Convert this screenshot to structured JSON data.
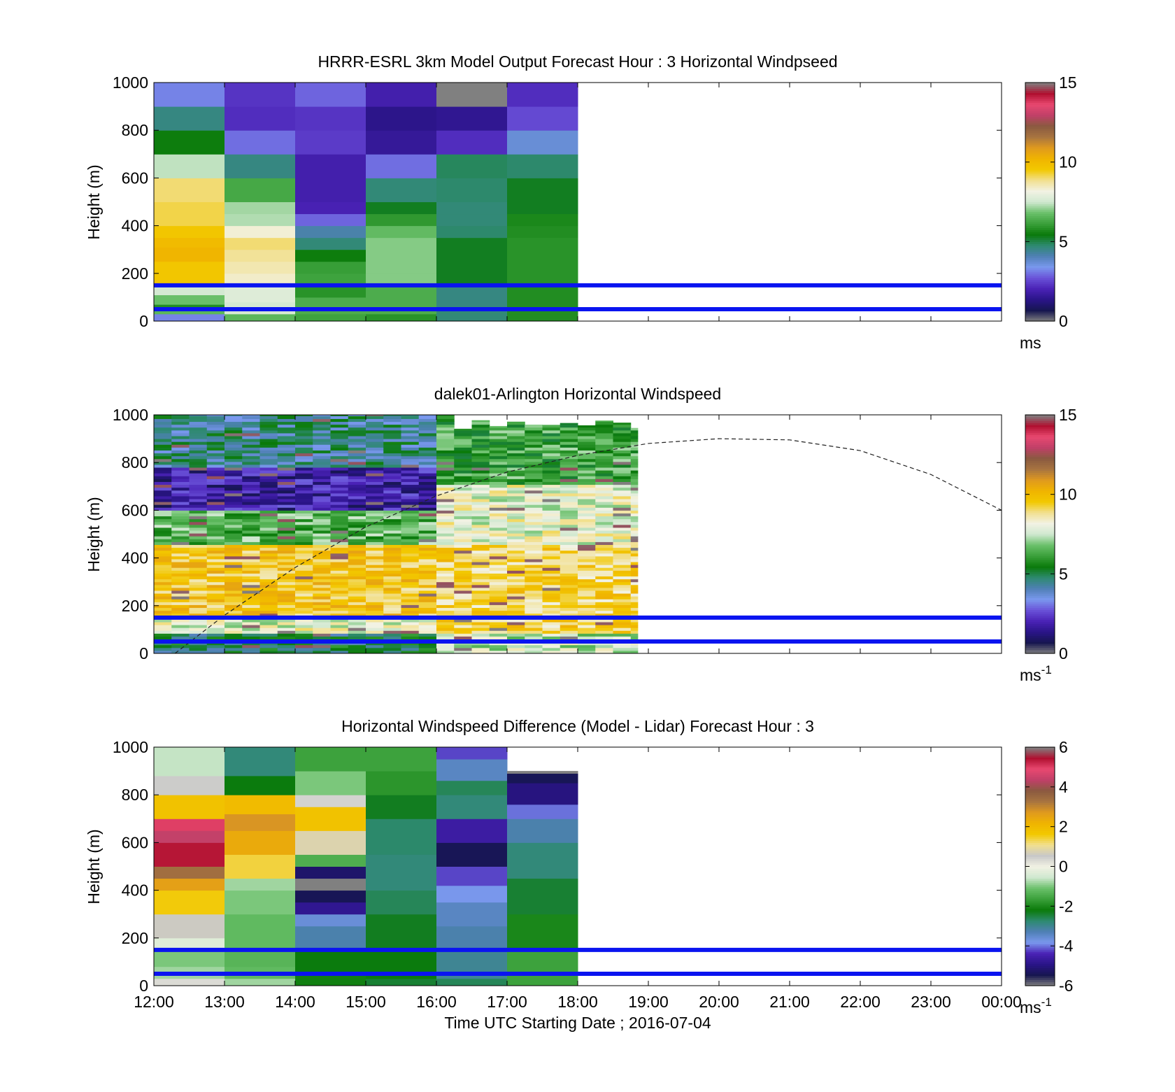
{
  "colors": {
    "ws_stops": [
      "#808080",
      "#161650",
      "#2a1488",
      "#4a22b6",
      "#6a52d8",
      "#7a98ee",
      "#4f80b5",
      "#2e8a70",
      "#0a7a0a",
      "#3aa03a",
      "#6ac06a",
      "#cfe8cf",
      "#f2f2e4",
      "#f2e090",
      "#f2c800",
      "#f0b400",
      "#e09a1e",
      "#a87440",
      "#8a5a40",
      "#c04068",
      "#e84870",
      "#b01030",
      "#808080"
    ],
    "diff_stops": [
      "#808080",
      "#161650",
      "#2a1488",
      "#4a22b6",
      "#7a98ee",
      "#4f80b5",
      "#2e8a70",
      "#0a7a0a",
      "#3aa03a",
      "#6ac06a",
      "#cfe8cf",
      "#f2f2e4",
      "#c8c8c8",
      "#f2e090",
      "#f2c800",
      "#f0b400",
      "#e09a1e",
      "#a87440",
      "#8a5a40",
      "#c04068",
      "#e84870",
      "#b01030",
      "#808080"
    ],
    "hline": "#0a14f0"
  },
  "chart_data": [
    {
      "type": "heatmap",
      "title": "HRRR-ESRL 3km Model Output   Forecast Hour : 3 Horizontal Windpseed",
      "ylabel": "Height (m)",
      "y_ticks": [
        "0",
        "200",
        "400",
        "600",
        "800",
        "1000"
      ],
      "ylim": [
        0,
        1000
      ],
      "x_ticks": [],
      "xlim_hours": [
        12,
        24
      ],
      "colorbar": {
        "ticks": [
          "0",
          "5",
          "10",
          "15"
        ],
        "range": [
          0,
          15
        ],
        "unit": "ms",
        "unit_sup": ""
      },
      "hlines_m": [
        150,
        50
      ],
      "data_range_hours": [
        12,
        18
      ],
      "columns": [
        {
          "start": 12,
          "levels": [
            [
              0,
              30,
              3.2
            ],
            [
              30,
              50,
              6.6
            ],
            [
              50,
              70,
              5.8
            ],
            [
              70,
              110,
              6.8
            ],
            [
              110,
              150,
              7.6
            ],
            [
              150,
              250,
              9.6
            ],
            [
              250,
              310,
              10.2
            ],
            [
              310,
              350,
              10.0
            ],
            [
              350,
              400,
              9.6
            ],
            [
              400,
              500,
              9.2
            ],
            [
              500,
              600,
              9.0
            ],
            [
              600,
              700,
              7.4
            ],
            [
              700,
              800,
              5.5
            ],
            [
              800,
              900,
              4.6
            ],
            [
              900,
              1000,
              3.2
            ]
          ]
        },
        {
          "start": 13,
          "levels": [
            [
              0,
              30,
              6.6
            ],
            [
              30,
              80,
              7.6
            ],
            [
              80,
              150,
              7.8
            ],
            [
              150,
              200,
              8.4
            ],
            [
              200,
              250,
              8.6
            ],
            [
              250,
              300,
              8.8
            ],
            [
              300,
              350,
              9.0
            ],
            [
              350,
              400,
              8.3
            ],
            [
              400,
              450,
              7.3
            ],
            [
              450,
              500,
              7.2
            ],
            [
              500,
              600,
              6.3
            ],
            [
              600,
              700,
              4.6
            ],
            [
              700,
              800,
              3.0
            ],
            [
              800,
              900,
              2.2
            ],
            [
              900,
              1000,
              2.3
            ]
          ]
        },
        {
          "start": 14,
          "levels": [
            [
              0,
              30,
              6.2
            ],
            [
              30,
              100,
              6.4
            ],
            [
              100,
              150,
              5.9
            ],
            [
              150,
              200,
              6.2
            ],
            [
              200,
              250,
              6.1
            ],
            [
              250,
              300,
              5.5
            ],
            [
              300,
              350,
              4.7
            ],
            [
              350,
              400,
              4.2
            ],
            [
              400,
              450,
              2.9
            ],
            [
              450,
              500,
              2.0
            ],
            [
              500,
              600,
              1.9
            ],
            [
              600,
              700,
              1.9
            ],
            [
              700,
              800,
              2.4
            ],
            [
              800,
              900,
              2.3
            ],
            [
              900,
              1000,
              2.9
            ]
          ]
        },
        {
          "start": 15,
          "levels": [
            [
              0,
              30,
              5.9
            ],
            [
              30,
              150,
              6.4
            ],
            [
              150,
              200,
              7.0
            ],
            [
              200,
              300,
              7.0
            ],
            [
              300,
              350,
              7.0
            ],
            [
              350,
              400,
              6.7
            ],
            [
              400,
              450,
              6.0
            ],
            [
              450,
              500,
              5.3
            ],
            [
              500,
              600,
              4.7
            ],
            [
              600,
              700,
              3.0
            ],
            [
              700,
              800,
              1.6
            ],
            [
              800,
              900,
              1.4
            ],
            [
              900,
              1000,
              1.9
            ]
          ]
        },
        {
          "start": 16,
          "levels": [
            [
              0,
              50,
              4.7
            ],
            [
              50,
              150,
              4.6
            ],
            [
              150,
              250,
              5.3
            ],
            [
              250,
              350,
              5.3
            ],
            [
              350,
              400,
              4.8
            ],
            [
              400,
              450,
              4.7
            ],
            [
              450,
              500,
              4.7
            ],
            [
              500,
              600,
              4.8
            ],
            [
              600,
              700,
              4.9
            ],
            [
              700,
              800,
              2.2
            ],
            [
              800,
              900,
              1.5
            ],
            [
              900,
              1000,
              15
            ]
          ]
        },
        {
          "start": 17,
          "levels": [
            [
              0,
              30,
              5.8
            ],
            [
              30,
              150,
              5.8
            ],
            [
              150,
              250,
              5.9
            ],
            [
              250,
              350,
              5.9
            ],
            [
              350,
              400,
              5.8
            ],
            [
              400,
              450,
              5.7
            ],
            [
              450,
              500,
              5.3
            ],
            [
              500,
              600,
              5.3
            ],
            [
              600,
              700,
              4.8
            ],
            [
              700,
              800,
              3.7
            ],
            [
              800,
              900,
              2.6
            ],
            [
              900,
              1000,
              2.2
            ]
          ]
        }
      ]
    },
    {
      "type": "heatmap",
      "title": "dalek01-Arlington  Horizontal Windspeed",
      "ylabel": "Height (m)",
      "y_ticks": [
        "0",
        "200",
        "400",
        "600",
        "800",
        "1000"
      ],
      "ylim": [
        0,
        1000
      ],
      "x_ticks": [],
      "xlim_hours": [
        12,
        24
      ],
      "colorbar": {
        "ticks": [
          "0",
          "5",
          "10",
          "15"
        ],
        "range": [
          0,
          15
        ],
        "unit": "ms",
        "unit_sup": "-1"
      },
      "hlines_m": [
        150,
        50
      ],
      "data_range_hours": [
        12,
        18.85
      ],
      "column_step_hours": 0.25,
      "profile_bands": [
        [
          0,
          80,
          5.0
        ],
        [
          80,
          150,
          8.0
        ],
        [
          150,
          450,
          9.6
        ],
        [
          450,
          600,
          6.5
        ],
        [
          600,
          780,
          1.8
        ],
        [
          780,
          1000,
          4.5
        ]
      ],
      "later_profile_bands": [
        [
          0,
          80,
          7.5
        ],
        [
          80,
          450,
          9.2
        ],
        [
          450,
          700,
          8.0
        ],
        [
          700,
          1000,
          6.2
        ]
      ],
      "curve": {
        "label": "",
        "points": [
          [
            12.3,
            0
          ],
          [
            13,
            160
          ],
          [
            14,
            360
          ],
          [
            15,
            530
          ],
          [
            16,
            660
          ],
          [
            17,
            760
          ],
          [
            18,
            830
          ],
          [
            19,
            880
          ],
          [
            20,
            900
          ],
          [
            21,
            895
          ],
          [
            22,
            850
          ],
          [
            23,
            750
          ],
          [
            24,
            600
          ]
        ]
      }
    },
    {
      "type": "heatmap",
      "title": "Horizontal Windspeed Difference (Model - Lidar) Forecast Hour : 3",
      "ylabel": "Height (m)",
      "xlabel": "Time UTC  Starting Date ; 2016-07-04",
      "y_ticks": [
        "0",
        "200",
        "400",
        "600",
        "800",
        "1000"
      ],
      "ylim": [
        0,
        1000
      ],
      "x_ticks": [
        "12:00",
        "13:00",
        "14:00",
        "15:00",
        "16:00",
        "17:00",
        "18:00",
        "19:00",
        "20:00",
        "21:00",
        "22:00",
        "23:00",
        "00:00"
      ],
      "xlim_hours": [
        12,
        24
      ],
      "colorbar": {
        "ticks": [
          "-6",
          "-4",
          "-2",
          "0",
          "2",
          "4",
          "6"
        ],
        "range": [
          -6,
          6
        ],
        "unit": "ms",
        "unit_sup": "-1"
      },
      "hlines_m": [
        150,
        50
      ],
      "data_range_hours": [
        12,
        18
      ],
      "columns": [
        {
          "start": 12,
          "levels": [
            [
              0,
              30,
              0.3
            ],
            [
              30,
              80,
              -0.8
            ],
            [
              80,
              150,
              -1.0
            ],
            [
              150,
              200,
              -0.3
            ],
            [
              200,
              300,
              0.6
            ],
            [
              300,
              400,
              1.6
            ],
            [
              400,
              450,
              2.6
            ],
            [
              450,
              500,
              3.4
            ],
            [
              500,
              600,
              5.4
            ],
            [
              600,
              650,
              4.4
            ],
            [
              650,
              700,
              5.0
            ],
            [
              700,
              800,
              1.8
            ],
            [
              800,
              880,
              0.5
            ],
            [
              880,
              1000,
              -0.6
            ]
          ]
        },
        {
          "start": 13,
          "levels": [
            [
              0,
              30,
              -0.8
            ],
            [
              30,
              80,
              -1.2
            ],
            [
              80,
              150,
              -1.3
            ],
            [
              150,
              300,
              -1.2
            ],
            [
              300,
              400,
              -1.0
            ],
            [
              400,
              450,
              -0.8
            ],
            [
              450,
              550,
              1.4
            ],
            [
              550,
              650,
              2.4
            ],
            [
              650,
              720,
              2.8
            ],
            [
              720,
              800,
              2.0
            ],
            [
              800,
              880,
              -2.2
            ],
            [
              880,
              1000,
              -2.8
            ]
          ]
        },
        {
          "start": 14,
          "levels": [
            [
              0,
              50,
              -2.1
            ],
            [
              50,
              150,
              -2.2
            ],
            [
              150,
              250,
              -3.2
            ],
            [
              250,
              300,
              -3.6
            ],
            [
              300,
              350,
              -4.8
            ],
            [
              350,
              400,
              -5.4
            ],
            [
              400,
              450,
              -6.0
            ],
            [
              450,
              500,
              -5.2
            ],
            [
              500,
              550,
              -1.4
            ],
            [
              550,
              650,
              0.8
            ],
            [
              650,
              750,
              1.8
            ],
            [
              750,
              800,
              0.4
            ],
            [
              800,
              900,
              -1.0
            ],
            [
              900,
              1000,
              -1.6
            ]
          ]
        },
        {
          "start": 15,
          "levels": [
            [
              0,
              30,
              -2.4
            ],
            [
              30,
              150,
              -2.2
            ],
            [
              150,
              300,
              -2.3
            ],
            [
              300,
              400,
              -2.6
            ],
            [
              400,
              550,
              -2.8
            ],
            [
              550,
              700,
              -2.7
            ],
            [
              700,
              800,
              -2.3
            ],
            [
              800,
              900,
              -1.8
            ],
            [
              900,
              1000,
              -1.6
            ]
          ]
        },
        {
          "start": 16,
          "levels": [
            [
              0,
              30,
              -2.6
            ],
            [
              30,
              150,
              -3.0
            ],
            [
              150,
              250,
              -3.2
            ],
            [
              250,
              350,
              -3.4
            ],
            [
              350,
              420,
              -3.8
            ],
            [
              420,
              500,
              -4.2
            ],
            [
              500,
              600,
              -5.4
            ],
            [
              600,
              700,
              -4.6
            ],
            [
              700,
              800,
              -2.8
            ],
            [
              800,
              860,
              -2.6
            ],
            [
              860,
              950,
              -3.4
            ],
            [
              950,
              1000,
              -4.2
            ]
          ]
        },
        {
          "start": 17,
          "levels": [
            [
              0,
              150,
              -1.6
            ],
            [
              150,
              300,
              -2.0
            ],
            [
              300,
              450,
              -2.4
            ],
            [
              450,
              600,
              -2.8
            ],
            [
              600,
              700,
              -3.2
            ],
            [
              700,
              760,
              -4.0
            ],
            [
              760,
              850,
              -5.0
            ],
            [
              850,
              890,
              -5.4
            ],
            [
              890,
              900,
              -6.0
            ]
          ]
        }
      ]
    }
  ]
}
